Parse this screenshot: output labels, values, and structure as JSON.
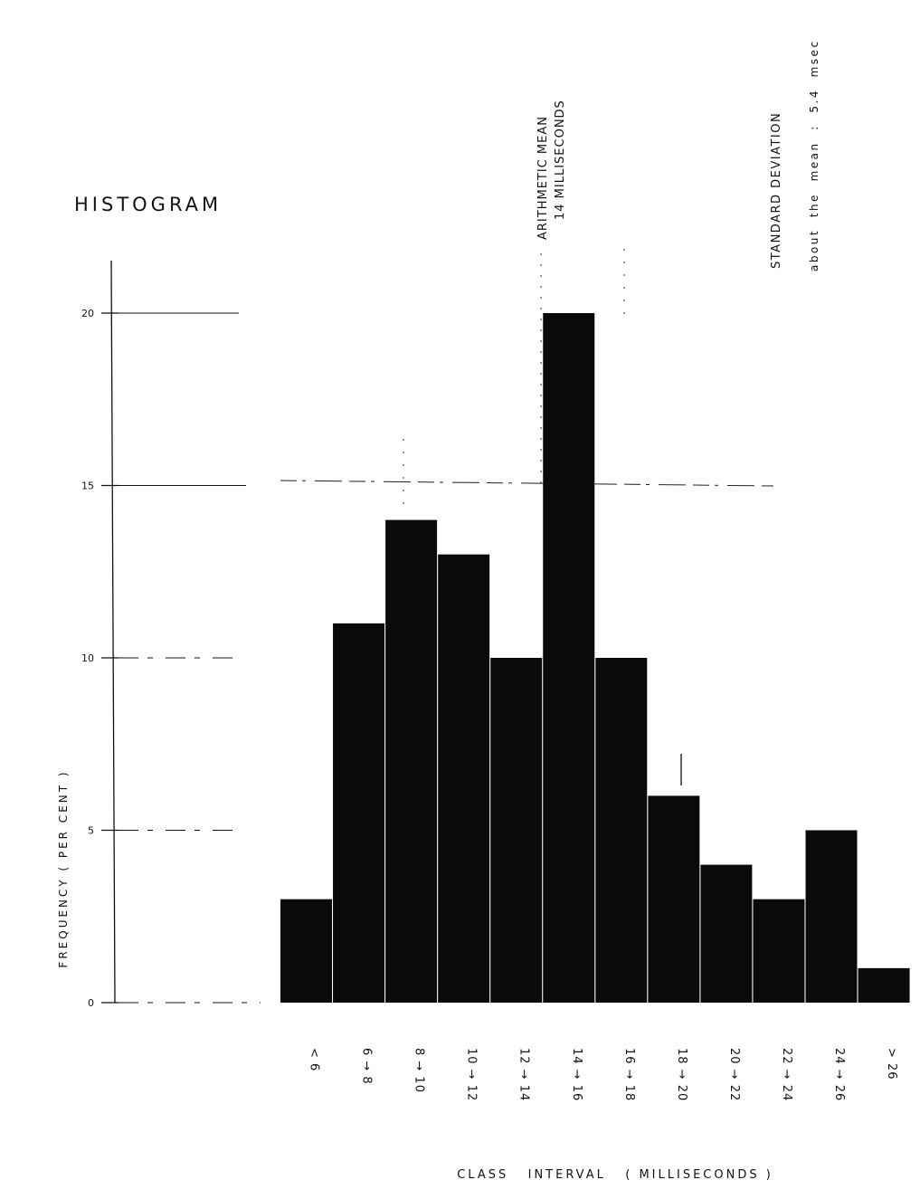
{
  "chart_data": {
    "type": "bar",
    "title": "HISTOGRAM",
    "xlabel": "CLASS   INTERVAL   ( MILLISECONDS )",
    "ylabel": "FREQUENCY   ( PER CENT )",
    "ylim": [
      0,
      20
    ],
    "yticks": [
      "0",
      "5",
      "10",
      "15",
      "20"
    ],
    "categories": [
      "< 6",
      "6 → 8",
      "8 → 10",
      "10 → 12",
      "12 → 14",
      "14 → 16",
      "16 → 18",
      "18 → 20",
      "20 → 22",
      "22 → 24",
      "24 → 26",
      "> 26"
    ],
    "values": [
      3,
      11,
      14,
      13,
      10,
      20,
      10,
      6,
      4,
      3,
      5,
      1
    ],
    "grid": false,
    "annotations": {
      "mean_line1": "ARITHMETIC MEAN",
      "mean_line2": "14 MILLISECONDS",
      "std_line1": "STANDARD DEVIATION",
      "std_line2": "about  the  mean  :  5.4  msec"
    },
    "colors": {
      "bar": "#0a0a0a",
      "ink": "#111111",
      "background": "#ffffff"
    }
  }
}
